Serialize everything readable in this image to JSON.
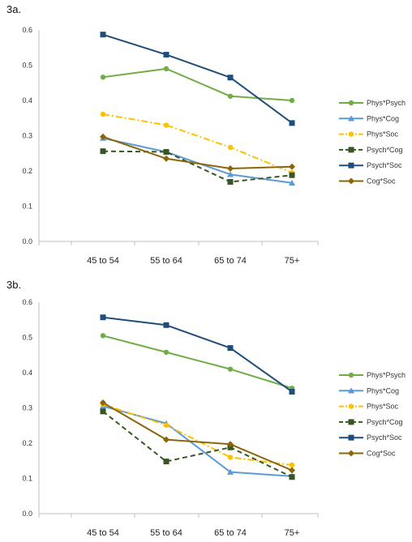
{
  "panels": [
    {
      "label": "3a."
    },
    {
      "label": "3b."
    }
  ],
  "chart_data": [
    {
      "type": "line",
      "title": "",
      "xlabel": "",
      "ylabel": "",
      "categories": [
        "45 to 54",
        "55 to 64",
        "65 to 74",
        "75+"
      ],
      "ylim": [
        0,
        0.6
      ],
      "yticks": [
        "0.0",
        "0.1",
        "0.2",
        "0.3",
        "0.4",
        "0.5",
        "0.6"
      ],
      "grid": false,
      "legend": "right",
      "series": [
        {
          "name": "Phys*Psych",
          "values": [
            0.466,
            0.49,
            0.412,
            0.4
          ],
          "color": "#70AD47",
          "marker": "circle",
          "dash": "solid"
        },
        {
          "name": "Phys*Cog",
          "values": [
            0.293,
            0.254,
            0.19,
            0.166
          ],
          "color": "#5B9BD5",
          "marker": "triangle",
          "dash": "solid"
        },
        {
          "name": "Phys*Soc",
          "values": [
            0.361,
            0.33,
            0.267,
            0.195
          ],
          "color": "#FFC000",
          "marker": "circle",
          "dash": "dashdot"
        },
        {
          "name": "Psych*Cog",
          "values": [
            0.256,
            0.254,
            0.169,
            0.188
          ],
          "color": "#375623",
          "marker": "square",
          "dash": "dashed"
        },
        {
          "name": "Psych*Soc",
          "values": [
            0.587,
            0.53,
            0.465,
            0.336
          ],
          "color": "#1F4E79",
          "marker": "square",
          "dash": "solid"
        },
        {
          "name": "Cog*Soc",
          "values": [
            0.297,
            0.235,
            0.207,
            0.212
          ],
          "color": "#8B6508",
          "marker": "diamond",
          "dash": "solid"
        }
      ]
    },
    {
      "type": "line",
      "title": "",
      "xlabel": "",
      "ylabel": "",
      "categories": [
        "45 to 54",
        "55 to 64",
        "65 to 74",
        "75+"
      ],
      "ylim": [
        0,
        0.6
      ],
      "yticks": [
        "0.0",
        "0.1",
        "0.2",
        "0.3",
        "0.4",
        "0.5",
        "0.6"
      ],
      "grid": false,
      "legend": "right",
      "series": [
        {
          "name": "Phys*Psych",
          "values": [
            0.505,
            0.458,
            0.41,
            0.356
          ],
          "color": "#70AD47",
          "marker": "circle",
          "dash": "solid"
        },
        {
          "name": "Phys*Cog",
          "values": [
            0.305,
            0.256,
            0.118,
            0.106
          ],
          "color": "#5B9BD5",
          "marker": "triangle",
          "dash": "solid"
        },
        {
          "name": "Phys*Soc",
          "values": [
            0.31,
            0.251,
            0.16,
            0.138
          ],
          "color": "#FFC000",
          "marker": "circle",
          "dash": "dashdot"
        },
        {
          "name": "Psych*Cog",
          "values": [
            0.29,
            0.148,
            0.188,
            0.104
          ],
          "color": "#375623",
          "marker": "square",
          "dash": "dashed"
        },
        {
          "name": "Psych*Soc",
          "values": [
            0.557,
            0.535,
            0.47,
            0.346
          ],
          "color": "#1F4E79",
          "marker": "square",
          "dash": "solid"
        },
        {
          "name": "Cog*Soc",
          "values": [
            0.315,
            0.21,
            0.197,
            0.123
          ],
          "color": "#8B6508",
          "marker": "diamond",
          "dash": "solid"
        }
      ]
    }
  ]
}
